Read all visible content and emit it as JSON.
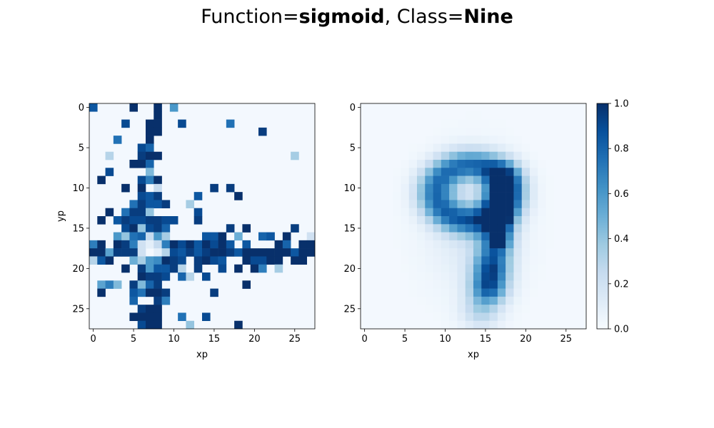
{
  "title": {
    "prefix": "Function=",
    "function": "sigmoid",
    "separator": ", Class=",
    "class": "Nine"
  },
  "colormap": {
    "name": "Blues",
    "low": "#f7fbff",
    "high": "#08306b"
  },
  "chart_data": [
    {
      "type": "heatmap",
      "grid": [
        28,
        28
      ],
      "xlabel": "xp",
      "ylabel": "yp",
      "xticks": [
        0,
        5,
        10,
        15,
        20,
        25
      ],
      "yticks": [
        0,
        5,
        10,
        15,
        20,
        25
      ],
      "xlim": [
        -0.5,
        27.5
      ],
      "ylim": [
        27.5,
        -0.5
      ],
      "background_value": 0.02,
      "cells": [
        [
          0,
          0,
          0.85
        ],
        [
          5,
          0,
          1
        ],
        [
          8,
          0,
          1
        ],
        [
          10,
          0,
          0.6
        ],
        [
          8,
          1,
          1
        ],
        [
          4,
          2,
          0.9
        ],
        [
          7,
          2,
          1
        ],
        [
          8,
          2,
          1
        ],
        [
          11,
          2,
          0.9
        ],
        [
          17,
          2,
          0.75
        ],
        [
          7,
          3,
          1
        ],
        [
          8,
          3,
          1
        ],
        [
          21,
          3,
          0.95
        ],
        [
          3,
          4,
          0.75
        ],
        [
          7,
          4,
          1
        ],
        [
          6,
          5,
          0.9
        ],
        [
          7,
          5,
          0.8
        ],
        [
          2,
          6,
          0.3
        ],
        [
          6,
          6,
          0.95
        ],
        [
          7,
          6,
          1
        ],
        [
          8,
          6,
          1
        ],
        [
          25,
          6,
          0.35
        ],
        [
          5,
          7,
          1
        ],
        [
          6,
          7,
          1
        ],
        [
          7,
          7,
          0.8
        ],
        [
          2,
          8,
          0.9
        ],
        [
          7,
          8,
          0.45
        ],
        [
          1,
          9,
          1
        ],
        [
          6,
          9,
          0.9
        ],
        [
          7,
          9,
          0.7
        ],
        [
          8,
          9,
          1
        ],
        [
          4,
          10,
          1
        ],
        [
          6,
          10,
          1
        ],
        [
          8,
          10,
          0.25
        ],
        [
          15,
          10,
          0.95
        ],
        [
          17,
          10,
          0.95
        ],
        [
          6,
          11,
          0.9
        ],
        [
          7,
          11,
          0.85
        ],
        [
          8,
          11,
          0.95
        ],
        [
          13,
          11,
          0.85
        ],
        [
          18,
          11,
          1
        ],
        [
          5,
          12,
          0.75
        ],
        [
          6,
          12,
          0.95
        ],
        [
          7,
          12,
          0.85
        ],
        [
          8,
          12,
          0.85
        ],
        [
          9,
          12,
          0.95
        ],
        [
          12,
          12,
          0.35
        ],
        [
          2,
          13,
          1
        ],
        [
          4,
          13,
          0.75
        ],
        [
          5,
          13,
          0.95
        ],
        [
          6,
          13,
          0.95
        ],
        [
          7,
          13,
          0.4
        ],
        [
          13,
          13,
          0.9
        ],
        [
          1,
          14,
          1
        ],
        [
          3,
          14,
          0.85
        ],
        [
          4,
          14,
          0.95
        ],
        [
          5,
          14,
          0.9
        ],
        [
          6,
          14,
          0.9
        ],
        [
          7,
          14,
          0.95
        ],
        [
          8,
          14,
          0.95
        ],
        [
          9,
          14,
          0.9
        ],
        [
          10,
          14,
          0.9
        ],
        [
          13,
          14,
          0.95
        ],
        [
          4,
          15,
          0.9
        ],
        [
          5,
          15,
          1
        ],
        [
          6,
          15,
          0.4
        ],
        [
          7,
          15,
          0.9
        ],
        [
          8,
          15,
          0.95
        ],
        [
          9,
          15,
          0.8
        ],
        [
          17,
          15,
          0.95
        ],
        [
          19,
          15,
          1
        ],
        [
          25,
          15,
          0.95
        ],
        [
          3,
          16,
          0.6
        ],
        [
          4,
          16,
          0.4
        ],
        [
          5,
          16,
          0.75
        ],
        [
          6,
          16,
          0.8
        ],
        [
          7,
          16,
          0.25
        ],
        [
          8,
          16,
          0.6
        ],
        [
          9,
          16,
          0.35
        ],
        [
          14,
          16,
          0.85
        ],
        [
          15,
          16,
          0.85
        ],
        [
          16,
          16,
          1
        ],
        [
          18,
          16,
          0.5
        ],
        [
          21,
          16,
          0.8
        ],
        [
          22,
          16,
          0.85
        ],
        [
          24,
          16,
          1
        ],
        [
          27,
          16,
          0.2
        ],
        [
          0,
          17,
          0.7
        ],
        [
          1,
          17,
          1
        ],
        [
          3,
          17,
          1
        ],
        [
          4,
          17,
          0.95
        ],
        [
          5,
          17,
          0.7
        ],
        [
          6,
          17,
          0.2
        ],
        [
          7,
          17,
          0.1
        ],
        [
          8,
          17,
          0.25
        ],
        [
          9,
          17,
          0.7
        ],
        [
          10,
          17,
          1
        ],
        [
          11,
          17,
          0.9
        ],
        [
          12,
          17,
          1
        ],
        [
          13,
          17,
          0.85
        ],
        [
          14,
          17,
          1
        ],
        [
          15,
          17,
          0.9
        ],
        [
          16,
          17,
          1
        ],
        [
          17,
          17,
          0.85
        ],
        [
          19,
          17,
          0.85
        ],
        [
          23,
          17,
          1
        ],
        [
          24,
          17,
          0.8
        ],
        [
          26,
          17,
          1
        ],
        [
          27,
          17,
          1
        ],
        [
          0,
          18,
          1
        ],
        [
          1,
          18,
          1
        ],
        [
          2,
          18,
          0.55
        ],
        [
          3,
          18,
          0.95
        ],
        [
          4,
          18,
          0.95
        ],
        [
          5,
          18,
          0.95
        ],
        [
          6,
          18,
          0.2
        ],
        [
          8,
          18,
          0.1
        ],
        [
          9,
          18,
          0.3
        ],
        [
          10,
          18,
          0.9
        ],
        [
          11,
          18,
          0.85
        ],
        [
          12,
          18,
          0.95
        ],
        [
          13,
          18,
          0.85
        ],
        [
          14,
          18,
          0.95
        ],
        [
          15,
          18,
          1
        ],
        [
          16,
          18,
          1
        ],
        [
          17,
          18,
          0.95
        ],
        [
          18,
          18,
          0.85
        ],
        [
          19,
          18,
          1
        ],
        [
          20,
          18,
          1
        ],
        [
          21,
          18,
          1
        ],
        [
          22,
          18,
          1
        ],
        [
          23,
          18,
          1
        ],
        [
          24,
          18,
          1
        ],
        [
          25,
          18,
          0.85
        ],
        [
          26,
          18,
          1
        ],
        [
          27,
          18,
          1
        ],
        [
          0,
          19,
          0.3
        ],
        [
          1,
          19,
          0.85
        ],
        [
          2,
          19,
          1
        ],
        [
          5,
          19,
          0.5
        ],
        [
          6,
          19,
          0.35
        ],
        [
          7,
          19,
          0.6
        ],
        [
          8,
          19,
          0.65
        ],
        [
          9,
          19,
          1
        ],
        [
          10,
          19,
          0.95
        ],
        [
          11,
          19,
          0.9
        ],
        [
          13,
          19,
          0.95
        ],
        [
          14,
          19,
          1
        ],
        [
          15,
          19,
          0.9
        ],
        [
          16,
          19,
          0.85
        ],
        [
          19,
          19,
          1
        ],
        [
          20,
          19,
          0.9
        ],
        [
          21,
          19,
          0.9
        ],
        [
          22,
          19,
          1
        ],
        [
          23,
          19,
          1
        ],
        [
          25,
          19,
          1
        ],
        [
          26,
          19,
          1
        ],
        [
          4,
          20,
          1
        ],
        [
          6,
          20,
          0.95
        ],
        [
          7,
          20,
          0.6
        ],
        [
          8,
          20,
          0.85
        ],
        [
          9,
          20,
          0.85
        ],
        [
          10,
          20,
          0.95
        ],
        [
          11,
          20,
          0.3
        ],
        [
          13,
          20,
          0.95
        ],
        [
          16,
          20,
          0.9
        ],
        [
          18,
          20,
          1
        ],
        [
          20,
          20,
          1
        ],
        [
          21,
          20,
          0.7
        ],
        [
          23,
          20,
          0.35
        ],
        [
          6,
          21,
          1
        ],
        [
          7,
          21,
          0.95
        ],
        [
          8,
          21,
          0.95
        ],
        [
          9,
          21,
          0.9
        ],
        [
          11,
          21,
          0.8
        ],
        [
          12,
          21,
          0.3
        ],
        [
          14,
          21,
          0.9
        ],
        [
          1,
          22,
          0.55
        ],
        [
          2,
          22,
          0.7
        ],
        [
          3,
          22,
          0.45
        ],
        [
          5,
          22,
          0.95
        ],
        [
          6,
          22,
          0.45
        ],
        [
          7,
          22,
          0.8
        ],
        [
          8,
          22,
          0.95
        ],
        [
          19,
          22,
          1
        ],
        [
          1,
          23,
          1
        ],
        [
          5,
          23,
          0.85
        ],
        [
          6,
          23,
          0.75
        ],
        [
          7,
          23,
          1
        ],
        [
          8,
          23,
          1
        ],
        [
          9,
          23,
          0.95
        ],
        [
          15,
          23,
          0.95
        ],
        [
          5,
          24,
          0.8
        ],
        [
          8,
          24,
          0.95
        ],
        [
          9,
          24,
          0.7
        ],
        [
          6,
          25,
          0.95
        ],
        [
          7,
          25,
          1
        ],
        [
          8,
          25,
          1
        ],
        [
          5,
          26,
          1
        ],
        [
          6,
          26,
          1
        ],
        [
          7,
          26,
          1
        ],
        [
          8,
          26,
          1
        ],
        [
          11,
          26,
          0.75
        ],
        [
          14,
          26,
          0.9
        ],
        [
          6,
          27,
          0.9
        ],
        [
          7,
          27,
          1
        ],
        [
          8,
          27,
          1
        ],
        [
          12,
          27,
          0.4
        ],
        [
          18,
          27,
          1
        ]
      ]
    },
    {
      "type": "heatmap",
      "grid": [
        28,
        28
      ],
      "xlabel": "xp",
      "ylabel": "",
      "xticks": [
        0,
        5,
        10,
        15,
        20,
        25
      ],
      "yticks": [
        0,
        5,
        10,
        15,
        20,
        25
      ],
      "xlim": [
        -0.5,
        27.5
      ],
      "ylim": [
        27.5,
        -0.5
      ],
      "background_value": 0.02,
      "fields": [
        {
          "shape": "ring",
          "cx": 13.2,
          "cy": 10.6,
          "rx": 4.3,
          "ry": 3.4,
          "width": 1.3,
          "amp": 0.72
        },
        {
          "shape": "segment",
          "x1": 17.2,
          "y1": 9.0,
          "x2": 15.6,
          "y2": 22.0,
          "width": 1.5,
          "amp": 0.6
        },
        {
          "shape": "segment",
          "x1": 17.0,
          "y1": 12.5,
          "x2": 16.8,
          "y2": 16.5,
          "width": 0.9,
          "amp": 0.42
        },
        {
          "shape": "segment",
          "x1": 15.5,
          "y1": 20.5,
          "x2": 14.5,
          "y2": 25.0,
          "width": 1.6,
          "amp": 0.3
        },
        {
          "shape": "blob",
          "cx": 13.5,
          "cy": 14.5,
          "sx": 7.5,
          "sy": 10.5,
          "amp": 0.14
        }
      ]
    }
  ],
  "colorbar": {
    "ticks": [
      "0.0",
      "0.2",
      "0.4",
      "0.6",
      "0.8",
      "1.0"
    ],
    "range": [
      0,
      1
    ]
  }
}
